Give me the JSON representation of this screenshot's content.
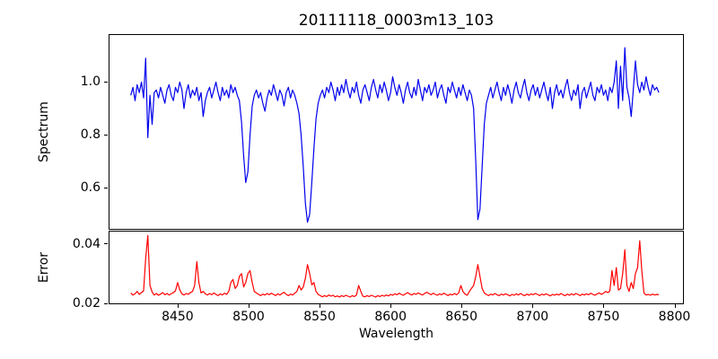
{
  "title": "20111118_0003m13_103",
  "chart_data": {
    "type": "line",
    "title": "20111118_0003m13_103",
    "xlabel": "Wavelength",
    "legend": "none",
    "grid": false,
    "panels": [
      {
        "name": "spectrum",
        "ylabel": "Spectrum",
        "xlim": [
          8402,
          8806
        ],
        "ylim": [
          0.445,
          1.178
        ],
        "yticks": [
          1.0,
          0.8,
          0.6
        ],
        "ytick_labels": [
          "1.0",
          "0.8",
          "0.6"
        ],
        "xticks": [],
        "xtick_labels": [],
        "series": {
          "name": "spectrum",
          "color": "#0000ee",
          "x_start": 8417,
          "x_step": 1.5,
          "y": [
            0.95,
            0.98,
            0.93,
            0.99,
            0.96,
            1.0,
            0.94,
            1.09,
            0.79,
            0.95,
            0.84,
            0.96,
            0.97,
            0.94,
            0.98,
            0.95,
            0.92,
            0.97,
            0.99,
            0.95,
            0.93,
            0.98,
            0.96,
            1.0,
            0.97,
            0.9,
            0.96,
            0.99,
            0.94,
            0.97,
            0.95,
            0.98,
            0.93,
            0.96,
            0.87,
            0.93,
            0.96,
            0.98,
            0.94,
            0.97,
            1.0,
            0.96,
            0.93,
            0.98,
            0.95,
            0.97,
            0.94,
            0.99,
            0.96,
            0.98,
            0.95,
            0.93,
            0.85,
            0.72,
            0.62,
            0.66,
            0.8,
            0.91,
            0.95,
            0.97,
            0.94,
            0.96,
            0.92,
            0.89,
            0.94,
            0.97,
            0.95,
            0.99,
            0.96,
            0.93,
            0.97,
            0.95,
            0.91,
            0.96,
            0.98,
            0.94,
            0.97,
            0.95,
            0.92,
            0.88,
            0.8,
            0.68,
            0.54,
            0.47,
            0.5,
            0.62,
            0.75,
            0.86,
            0.92,
            0.95,
            0.97,
            0.94,
            0.98,
            0.96,
            1.0,
            0.97,
            0.93,
            0.98,
            0.95,
            0.99,
            0.96,
            1.01,
            0.97,
            0.94,
            0.98,
            0.96,
            1.0,
            0.95,
            0.92,
            0.97,
            0.99,
            0.96,
            0.93,
            0.98,
            1.01,
            0.97,
            0.94,
            0.99,
            0.96,
            1.0,
            0.97,
            0.93,
            0.96,
            1.02,
            0.98,
            0.95,
            0.99,
            0.96,
            0.92,
            0.97,
            1.0,
            0.96,
            0.94,
            0.98,
            0.95,
            1.01,
            0.97,
            0.93,
            0.98,
            0.96,
            0.99,
            0.95,
            0.97,
            1.0,
            0.94,
            0.97,
            0.99,
            0.95,
            0.92,
            0.98,
            0.96,
            1.0,
            0.97,
            0.94,
            0.98,
            0.95,
            0.99,
            0.96,
            0.93,
            0.97,
            0.95,
            0.9,
            0.7,
            0.48,
            0.52,
            0.68,
            0.84,
            0.92,
            0.95,
            0.98,
            0.94,
            0.97,
            1.0,
            0.96,
            0.93,
            0.98,
            0.95,
            0.99,
            0.96,
            0.92,
            0.97,
            1.0,
            0.96,
            0.94,
            0.98,
            1.01,
            0.96,
            0.93,
            0.97,
            0.99,
            0.95,
            0.98,
            0.94,
            0.97,
            1.0,
            0.96,
            0.93,
            0.98,
            0.9,
            0.96,
            0.99,
            0.95,
            0.97,
            0.94,
            0.98,
            1.01,
            0.96,
            0.93,
            0.97,
            0.95,
            0.99,
            0.9,
            0.96,
            0.98,
            0.94,
            0.97,
            1.0,
            0.95,
            0.93,
            0.98,
            0.96,
            0.99,
            0.95,
            0.97,
            0.93,
            0.98,
            0.96,
            1.0,
            1.08,
            0.9,
            1.06,
            0.93,
            1.13,
            0.98,
            0.94,
            0.87,
            0.97,
            1.08,
            0.99,
            0.96,
            1.0,
            0.97,
            1.02,
            0.98,
            0.95,
            0.99,
            0.97,
            0.98,
            0.96
          ]
        }
      },
      {
        "name": "error",
        "ylabel": "Error",
        "xlim": [
          8402,
          8806
        ],
        "ylim": [
          0.02,
          0.0441
        ],
        "yticks": [
          0.04,
          0.02
        ],
        "ytick_labels": [
          "0.04",
          "0.02"
        ],
        "xticks": [
          8450,
          8500,
          8550,
          8600,
          8650,
          8700,
          8750,
          8800
        ],
        "xtick_labels": [
          "8450",
          "8500",
          "8550",
          "8600",
          "8650",
          "8700",
          "8750",
          "8800"
        ],
        "series": {
          "name": "error",
          "color": "#ff0000",
          "x_start": 8417,
          "x_step": 1.5,
          "y": [
            0.0235,
            0.0228,
            0.0232,
            0.024,
            0.023,
            0.0236,
            0.0242,
            0.035,
            0.0428,
            0.026,
            0.0238,
            0.0228,
            0.0233,
            0.0227,
            0.0231,
            0.0236,
            0.0229,
            0.0233,
            0.0228,
            0.0232,
            0.0236,
            0.0242,
            0.027,
            0.0245,
            0.0232,
            0.0228,
            0.0233,
            0.023,
            0.0236,
            0.024,
            0.026,
            0.034,
            0.027,
            0.0235,
            0.024,
            0.0232,
            0.0228,
            0.0233,
            0.0229,
            0.0235,
            0.023,
            0.0226,
            0.0232,
            0.0228,
            0.0234,
            0.023,
            0.024,
            0.027,
            0.028,
            0.025,
            0.026,
            0.029,
            0.03,
            0.0255,
            0.027,
            0.03,
            0.031,
            0.027,
            0.024,
            0.0235,
            0.023,
            0.0226,
            0.0231,
            0.0228,
            0.0233,
            0.0229,
            0.0234,
            0.023,
            0.0226,
            0.0232,
            0.0228,
            0.0233,
            0.0237,
            0.023,
            0.0226,
            0.0231,
            0.0228,
            0.0234,
            0.024,
            0.026,
            0.0245,
            0.0255,
            0.0285,
            0.033,
            0.03,
            0.0262,
            0.027,
            0.024,
            0.023,
            0.0226,
            0.0222,
            0.0226,
            0.0223,
            0.0228,
            0.0224,
            0.0227,
            0.0222,
            0.0225,
            0.0221,
            0.0226,
            0.0223,
            0.0227,
            0.0224,
            0.0221,
            0.0226,
            0.0223,
            0.0228,
            0.026,
            0.024,
            0.0224,
            0.0222,
            0.0226,
            0.0223,
            0.0227,
            0.0224,
            0.0221,
            0.0226,
            0.0223,
            0.0227,
            0.0224,
            0.0228,
            0.0225,
            0.023,
            0.0227,
            0.0232,
            0.0229,
            0.0234,
            0.023,
            0.0227,
            0.0232,
            0.0236,
            0.0231,
            0.0228,
            0.0233,
            0.023,
            0.0235,
            0.0231,
            0.0228,
            0.0233,
            0.0237,
            0.0233,
            0.0229,
            0.0234,
            0.023,
            0.0227,
            0.0232,
            0.0229,
            0.0234,
            0.023,
            0.0226,
            0.0231,
            0.0228,
            0.0233,
            0.0229,
            0.0235,
            0.026,
            0.024,
            0.0231,
            0.0227,
            0.024,
            0.025,
            0.026,
            0.029,
            0.033,
            0.029,
            0.025,
            0.0235,
            0.023,
            0.0226,
            0.0231,
            0.0228,
            0.0233,
            0.0229,
            0.0226,
            0.0231,
            0.0228,
            0.0232,
            0.0229,
            0.0225,
            0.023,
            0.0227,
            0.0232,
            0.0228,
            0.0233,
            0.0229,
            0.0226,
            0.0231,
            0.0227,
            0.0232,
            0.0229,
            0.0233,
            0.023,
            0.0226,
            0.0231,
            0.0228,
            0.0232,
            0.0229,
            0.0225,
            0.023,
            0.0227,
            0.0231,
            0.0228,
            0.0233,
            0.0229,
            0.0226,
            0.0231,
            0.0227,
            0.0232,
            0.0228,
            0.0233,
            0.023,
            0.0226,
            0.0231,
            0.0228,
            0.0232,
            0.0229,
            0.0234,
            0.023,
            0.0227,
            0.0232,
            0.0235,
            0.023,
            0.0234,
            0.024,
            0.0236,
            0.0242,
            0.031,
            0.026,
            0.032,
            0.0245,
            0.025,
            0.03,
            0.038,
            0.026,
            0.024,
            0.027,
            0.025,
            0.03,
            0.032,
            0.041,
            0.031,
            0.0235,
            0.0228,
            0.023,
            0.0227,
            0.0231,
            0.0228,
            0.023,
            0.0229
          ]
        }
      }
    ]
  }
}
